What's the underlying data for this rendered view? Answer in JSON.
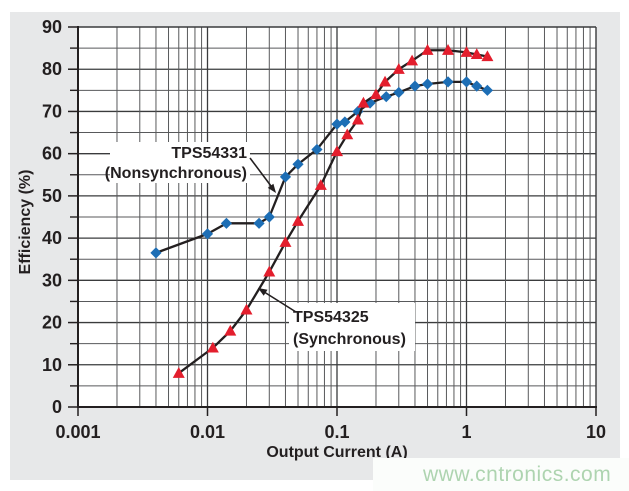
{
  "watermark": {
    "text": "www.cntronics.com",
    "color": "#aed4b0"
  },
  "colors": {
    "panel_bg": "#e7e8e9",
    "plot_bg": "#ffffff",
    "grid_minor": "#58595b",
    "grid_major": "#3a3b3d",
    "axis_line": "#231f20",
    "series_blue": "#1d6eb5",
    "series_red": "#e31e2d",
    "curve_line": "#231f20"
  },
  "chart_data": {
    "type": "line",
    "title": "",
    "xlabel": "Output Current (A)",
    "ylabel": "Efficiency (%)",
    "grid": true,
    "x_axis": {
      "scale": "log",
      "min": 0.001,
      "max": 10,
      "tick_values": [
        0.001,
        0.01,
        0.1,
        1,
        10
      ],
      "tick_labels": [
        "0.001",
        "0.01",
        "0.1",
        "1",
        "10"
      ],
      "minor_gridlines": "log decades 2-9"
    },
    "y_axis": {
      "scale": "linear",
      "min": 0,
      "max": 90,
      "major_step": 10,
      "minor_step": 5,
      "tick_values": [
        0,
        10,
        20,
        30,
        40,
        50,
        60,
        70,
        80,
        90
      ],
      "tick_labels": [
        "0",
        "10",
        "20",
        "30",
        "40",
        "50",
        "60",
        "70",
        "80",
        "90"
      ]
    },
    "series": [
      {
        "name": "TPS54331 (Nonsynchronous)",
        "marker": "diamond",
        "marker_color": "#1d6eb5",
        "line_color": "#231f20",
        "points": [
          [
            0.004,
            36.5
          ],
          [
            0.01,
            41
          ],
          [
            0.014,
            43.5
          ],
          [
            0.025,
            43.5
          ],
          [
            0.03,
            45
          ],
          [
            0.04,
            54.5
          ],
          [
            0.05,
            57.5
          ],
          [
            0.07,
            61
          ],
          [
            0.1,
            67
          ],
          [
            0.115,
            67.5
          ],
          [
            0.145,
            70
          ],
          [
            0.18,
            72
          ],
          [
            0.24,
            73.5
          ],
          [
            0.3,
            74.5
          ],
          [
            0.4,
            76
          ],
          [
            0.5,
            76.5
          ],
          [
            0.72,
            77
          ],
          [
            1.0,
            77
          ],
          [
            1.2,
            76
          ],
          [
            1.45,
            75
          ]
        ]
      },
      {
        "name": "TPS54325 (Synchronous)",
        "marker": "triangle",
        "marker_color": "#e31e2d",
        "line_color": "#231f20",
        "points": [
          [
            0.006,
            8
          ],
          [
            0.011,
            14
          ],
          [
            0.015,
            18
          ],
          [
            0.02,
            23
          ],
          [
            0.03,
            32
          ],
          [
            0.04,
            39
          ],
          [
            0.05,
            44
          ],
          [
            0.075,
            52.5
          ],
          [
            0.1,
            60.5
          ],
          [
            0.12,
            64.5
          ],
          [
            0.145,
            68
          ],
          [
            0.16,
            72
          ],
          [
            0.2,
            74
          ],
          [
            0.235,
            77
          ],
          [
            0.3,
            80
          ],
          [
            0.38,
            82
          ],
          [
            0.5,
            84.5
          ],
          [
            0.72,
            84.5
          ],
          [
            1.0,
            84
          ],
          [
            1.2,
            83.5
          ],
          [
            1.45,
            83
          ]
        ]
      }
    ],
    "annotations": [
      {
        "line1": "TPS54331",
        "line2": "(Nonsynchronous)",
        "points_to": "blue diamond curve"
      },
      {
        "line1": "TPS54325",
        "line2": "(Synchronous)",
        "points_to": "red triangle curve"
      }
    ]
  }
}
